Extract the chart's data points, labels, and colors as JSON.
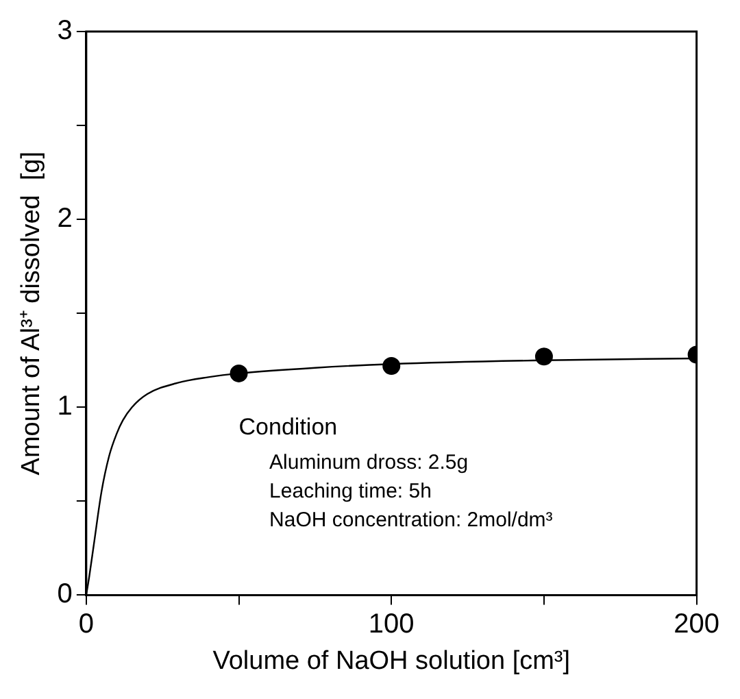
{
  "chart_data": {
    "type": "scatter",
    "xlabel": "Volume of NaOH solution [cm³]",
    "ylabel": "Amount of Al³⁺ dissolved  [g]",
    "xlim": [
      0,
      200
    ],
    "xticks": [
      0,
      {
        "value": 50,
        "label": null
      },
      100,
      {
        "value": 150,
        "label": null
      },
      200
    ],
    "ylim": [
      0,
      3
    ],
    "yticks": [
      0,
      {
        "value": 0.5,
        "label": null
      },
      1,
      {
        "value": 1.5,
        "label": null
      },
      2,
      {
        "value": 2.5,
        "label": null
      },
      3
    ],
    "series": [
      {
        "type": "scatter",
        "color": "#000000",
        "marker": "circle",
        "x": [
          50,
          100,
          150,
          200
        ],
        "values": [
          1.18,
          1.22,
          1.27,
          1.28
        ]
      },
      {
        "type": "line",
        "color": "#000000",
        "marker": "none",
        "line_style": "solid",
        "x": [
          0,
          1,
          2.5,
          5,
          7.5,
          10,
          12,
          15,
          20,
          30,
          40,
          50,
          75,
          100,
          150,
          200
        ],
        "values": [
          0,
          0.1,
          0.27,
          0.55,
          0.74,
          0.86,
          0.93,
          1.0,
          1.07,
          1.13,
          1.16,
          1.18,
          1.21,
          1.23,
          1.25,
          1.26
        ]
      }
    ],
    "annotations": [
      "Condition",
      "Aluminum dross: 2.5g",
      "Leaching time: 5h",
      "NaOH concentration: 2mol/dm³"
    ],
    "grid": false,
    "legend": false
  }
}
